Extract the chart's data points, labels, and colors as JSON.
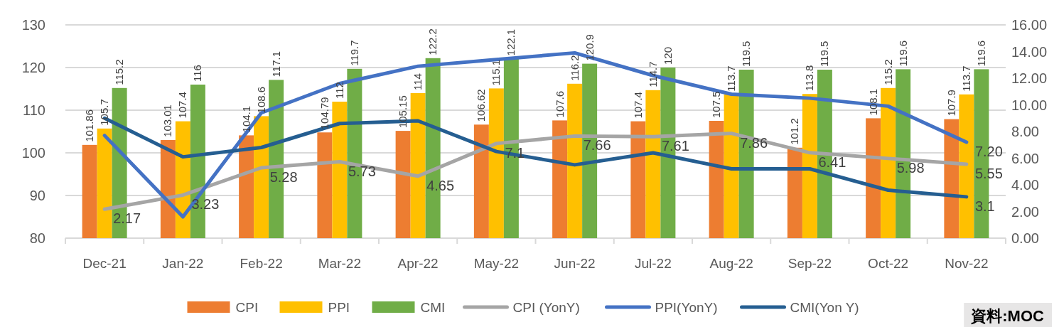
{
  "chart_data": {
    "type": "bar",
    "categories": [
      "Dec-21",
      "Jan-22",
      "Feb-22",
      "Mar-22",
      "Apr-22",
      "May-22",
      "Jun-22",
      "Jul-22",
      "Aug-22",
      "Sep-22",
      "Oct-22",
      "Nov-22"
    ],
    "ylim": [
      80,
      130
    ],
    "yticks": [
      80,
      90,
      100,
      110,
      120,
      130
    ],
    "y2lim": [
      0,
      16
    ],
    "y2ticks": [
      {
        "value": 0,
        "label": "0.00"
      },
      {
        "value": 2,
        "label": "2.00"
      },
      {
        "value": 4,
        "label": "4.00"
      },
      {
        "value": 6,
        "label": "6.00"
      },
      {
        "value": 8,
        "label": "8.00"
      },
      {
        "value": 10,
        "label": "10.00"
      },
      {
        "value": 12,
        "label": "12.00"
      },
      {
        "value": 14,
        "label": "14.00"
      },
      {
        "value": 16,
        "label": "16.00"
      }
    ],
    "grid": "y",
    "legend": "bottom",
    "annotations": [
      "資料:MOC"
    ],
    "series": [
      {
        "name": "CPI",
        "color": "#ed7d31",
        "values": [
          101.86,
          103.01,
          104.1,
          104.79,
          105.15,
          106.62,
          107.6,
          107.4,
          107.5,
          101.2,
          108.1,
          107.9
        ],
        "value_labels": [
          "101.86",
          "103.01",
          "104.1",
          "104.79",
          "105.15",
          "106.62",
          "107.6",
          "107.4",
          "107.5",
          "101.2",
          "108.1",
          "107.9"
        ]
      },
      {
        "name": "PPI",
        "color": "#ffc000",
        "values": [
          105.7,
          107.4,
          108.6,
          112,
          114,
          115.1,
          116.2,
          114.7,
          113.7,
          113.8,
          115.2,
          113.7
        ],
        "value_labels": [
          "105.7",
          "107.4",
          "108.6",
          "112",
          "114",
          "115.1",
          "116.2",
          "114.7",
          "113.7",
          "113.8",
          "115.2",
          "113.7"
        ]
      },
      {
        "name": "CMI",
        "color": "#70ad47",
        "values": [
          115.2,
          116,
          117.1,
          119.7,
          122.2,
          122.1,
          120.9,
          120,
          119.5,
          119.5,
          119.6,
          119.6
        ],
        "value_labels": [
          "115.2",
          "116",
          "117.1",
          "119.7",
          "122.2",
          "122.1",
          "120.9",
          "120",
          "119.5",
          "119.5",
          "119.6",
          "119.6"
        ]
      },
      {
        "name": "CPI (YonY)",
        "type": "line",
        "axis": "y2",
        "color": "#a5a5a5",
        "values": [
          2.17,
          3.23,
          5.28,
          5.73,
          4.65,
          7.1,
          7.66,
          7.61,
          7.86,
          6.41,
          5.98,
          5.55
        ],
        "value_labels": [
          "2.17",
          "3.23",
          "5.28",
          "5.73",
          "4.65",
          "7.1",
          "7.66",
          "7.61",
          "7.86",
          "6.41",
          "5.98",
          "5.55"
        ]
      },
      {
        "name": "PPI(YonY)",
        "type": "line",
        "axis": "y2",
        "color": "#4472c4",
        "values": [
          7.7,
          1.6,
          9.4,
          11.6,
          12.9,
          13.4,
          13.9,
          12.2,
          10.8,
          10.5,
          9.9,
          7.2
        ],
        "value_labels": [
          null,
          null,
          null,
          null,
          null,
          null,
          null,
          null,
          null,
          null,
          null,
          "7.20"
        ]
      },
      {
        "name": "CMI(Yon Y)",
        "type": "line",
        "axis": "y2",
        "color": "#255e91",
        "values": [
          9.0,
          6.1,
          6.8,
          8.6,
          8.8,
          6.5,
          5.5,
          6.4,
          5.2,
          5.2,
          3.6,
          3.1
        ],
        "value_labels": [
          null,
          null,
          null,
          null,
          null,
          null,
          null,
          null,
          null,
          null,
          null,
          "3.1"
        ]
      }
    ]
  }
}
